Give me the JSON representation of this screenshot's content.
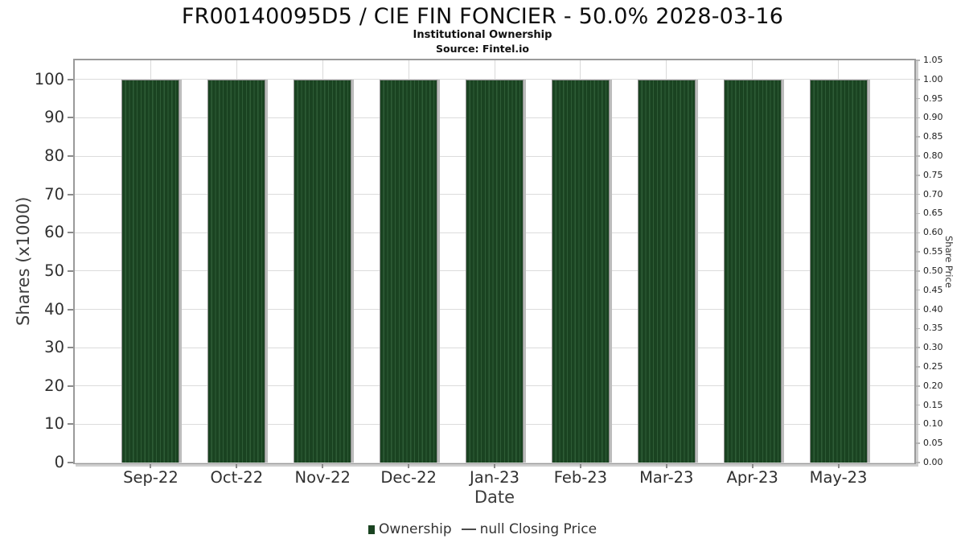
{
  "chart_data": {
    "type": "bar",
    "title": "FR00140095D5 / CIE FIN FONCIER - 50.0% 2028-03-16",
    "subtitle": "Institutional Ownership",
    "source": "Source: Fintel.io",
    "xlabel": "Date",
    "ylabel_left": "Shares (x1000)",
    "ylabel_right": "Share Price",
    "categories": [
      "Sep-22",
      "Oct-22",
      "Nov-22",
      "Dec-22",
      "Jan-23",
      "Feb-23",
      "Mar-23",
      "Apr-23",
      "May-23"
    ],
    "series": [
      {
        "name": "Ownership",
        "type": "bar",
        "color": "#1a4321",
        "hatch_color": "#2e5c36",
        "values": [
          100,
          100,
          100,
          100,
          100,
          100,
          100,
          100,
          100
        ]
      },
      {
        "name": "null Closing Price",
        "type": "line",
        "color": "#4a4a4a",
        "values": []
      }
    ],
    "ylim_left": [
      0,
      105
    ],
    "yticks_left": [
      0,
      10,
      20,
      30,
      40,
      50,
      60,
      70,
      80,
      90,
      100
    ],
    "ylim_right": [
      0,
      1.05
    ],
    "yticks_right": [
      "0.00",
      "0.05",
      "0.10",
      "0.15",
      "0.20",
      "0.25",
      "0.30",
      "0.35",
      "0.40",
      "0.45",
      "0.50",
      "0.55",
      "0.60",
      "0.65",
      "0.70",
      "0.75",
      "0.80",
      "0.85",
      "0.90",
      "0.95",
      "1.00",
      "1.05"
    ],
    "grid": true,
    "legend_position": "bottom",
    "legend": [
      {
        "label": "Ownership",
        "marker": "square",
        "color": "#1a4321"
      },
      {
        "label": "null Closing Price",
        "marker": "dash",
        "color": "#4a4a4a"
      }
    ]
  }
}
